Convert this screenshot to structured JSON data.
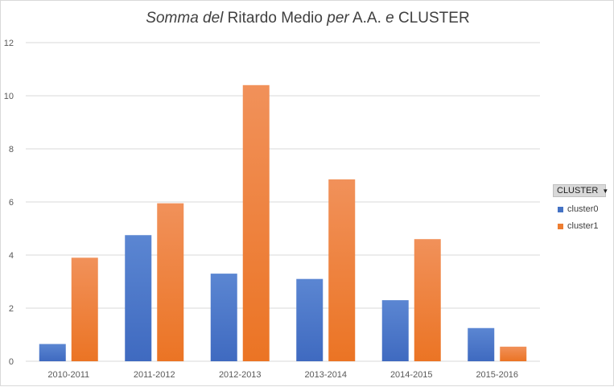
{
  "chart_data": {
    "type": "bar",
    "title_parts": [
      {
        "text": "Somma del",
        "italic": true
      },
      {
        "text": " Ritardo Medio ",
        "italic": false
      },
      {
        "text": "per",
        "italic": true
      },
      {
        "text": " A.A. ",
        "italic": false
      },
      {
        "text": "e",
        "italic": true
      },
      {
        "text": " CLUSTER",
        "italic": false
      }
    ],
    "categories": [
      "2010-2011",
      "2011-2012",
      "2012-2013",
      "2013-2014",
      "2014-2015",
      "2015-2016"
    ],
    "series": [
      {
        "name": "cluster0",
        "values": [
          0.65,
          4.75,
          3.3,
          3.1,
          2.3,
          1.25
        ],
        "color": "#4472c4"
      },
      {
        "name": "cluster1",
        "values": [
          3.9,
          5.95,
          10.4,
          6.85,
          4.6,
          0.55
        ],
        "color": "#ed7d31"
      }
    ],
    "ylim": [
      0,
      12
    ],
    "yticks": [
      0,
      2,
      4,
      6,
      8,
      10,
      12
    ],
    "grid": true,
    "legend_position": "right"
  },
  "legend": {
    "field_button": "CLUSTER",
    "dropdown_icon": "triangle-down-icon"
  }
}
